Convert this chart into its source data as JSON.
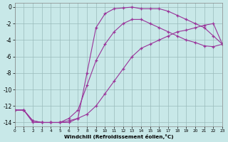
{
  "xlabel": "Windchill (Refroidissement éolien,°C)",
  "bg_color": "#c8e8e8",
  "line_color": "#993399",
  "grid_color": "#99bbbb",
  "xlim": [
    0,
    23
  ],
  "ylim": [
    -14.5,
    0.5
  ],
  "xticks": [
    0,
    1,
    2,
    3,
    4,
    5,
    6,
    7,
    8,
    9,
    10,
    11,
    12,
    13,
    14,
    15,
    16,
    17,
    18,
    19,
    20,
    21,
    22,
    23
  ],
  "yticks": [
    0,
    -2,
    -4,
    -6,
    -8,
    -10,
    -12,
    -14
  ],
  "series1_x": [
    0,
    1,
    2,
    3,
    4,
    5,
    6,
    7,
    8,
    9,
    10,
    11,
    12,
    13,
    14,
    15,
    16,
    17,
    18,
    19,
    20,
    21,
    22,
    23
  ],
  "series1_y": [
    -12.5,
    -12.5,
    -13.8,
    -14.0,
    -14.0,
    -14.0,
    -13.5,
    -12.5,
    -9.5,
    -6.5,
    -4.5,
    -3.0,
    -2.0,
    -1.5,
    -1.5,
    -2.0,
    -2.5,
    -3.0,
    -3.5,
    -4.0,
    -4.3,
    -4.7,
    -4.8,
    -4.5
  ],
  "series2_x": [
    0,
    1,
    2,
    3,
    4,
    5,
    6,
    7,
    8,
    9,
    10,
    11,
    12,
    13,
    14,
    15,
    16,
    17,
    18,
    19,
    20,
    21,
    22,
    23
  ],
  "series2_y": [
    -12.5,
    -12.5,
    -13.8,
    -14.0,
    -14.0,
    -14.0,
    -13.8,
    -13.5,
    -13.0,
    -12.0,
    -10.5,
    -9.0,
    -7.5,
    -6.0,
    -5.0,
    -4.5,
    -4.0,
    -3.5,
    -3.0,
    -2.8,
    -2.5,
    -2.2,
    -2.0,
    -4.5
  ],
  "series3_x": [
    0,
    1,
    2,
    3,
    4,
    5,
    6,
    7,
    8,
    9,
    10,
    11,
    12,
    13,
    14,
    15,
    16,
    17,
    18,
    19,
    20,
    21,
    22,
    23
  ],
  "series3_y": [
    -12.5,
    -12.5,
    -14.0,
    -14.0,
    -14.0,
    -14.0,
    -14.0,
    -13.5,
    -8.0,
    -2.5,
    -0.8,
    -0.2,
    -0.1,
    0.0,
    -0.2,
    -0.2,
    -0.2,
    -0.5,
    -1.0,
    -1.5,
    -2.0,
    -2.5,
    -3.5,
    -4.5
  ]
}
